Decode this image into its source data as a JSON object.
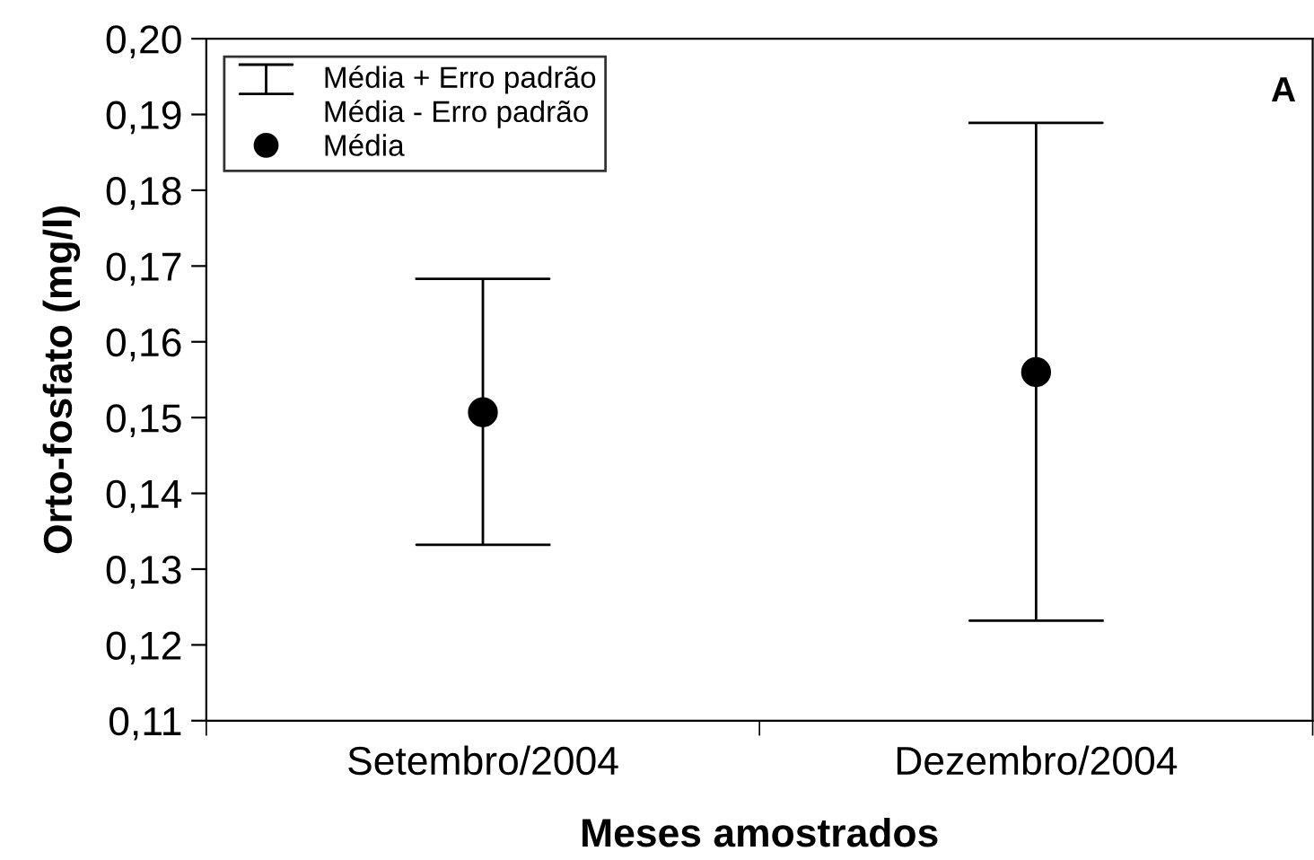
{
  "chart_data": {
    "type": "scatter",
    "xlabel": "Meses amostrados",
    "ylabel": "Orto-fosfato (mg/l)",
    "categories": [
      "Setembro/2004",
      "Dezembro/2004"
    ],
    "series": [
      {
        "name": "Média",
        "color": "#000000",
        "values": [
          0.1507,
          0.156
        ],
        "errors": [
          [
            0.1332,
            0.1683
          ],
          [
            0.1232,
            0.1889
          ]
        ]
      }
    ],
    "annotations": [
      "Média + Erro padrão",
      "Média - Erro padrão",
      "A"
    ],
    "ylim": [
      0.11,
      0.2
    ],
    "yticks": [
      {
        "value": 0.11,
        "label": "0,11"
      },
      {
        "value": 0.12,
        "label": "0,12"
      },
      {
        "value": 0.13,
        "label": "0,13"
      },
      {
        "value": 0.14,
        "label": "0,14"
      },
      {
        "value": 0.15,
        "label": "0,15"
      },
      {
        "value": 0.16,
        "label": "0,16"
      },
      {
        "value": 0.17,
        "label": "0,17"
      },
      {
        "value": 0.18,
        "label": "0,18"
      },
      {
        "value": 0.19,
        "label": "0,19"
      },
      {
        "value": 0.2,
        "label": "0,20"
      }
    ],
    "legend": "top left",
    "marker": "circle",
    "grid": false
  }
}
